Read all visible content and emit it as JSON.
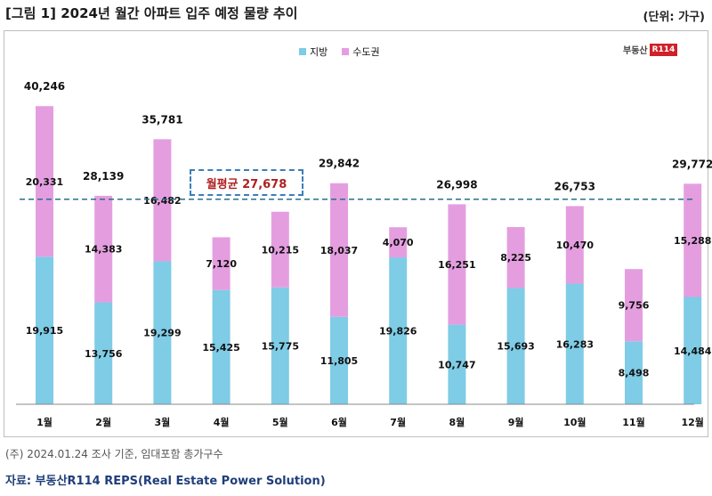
{
  "title": "[그림 1] 2024년 월간 아파트 입주 예정 물량 추이",
  "unit_label": "(단위: 가구)",
  "logo": {
    "text": "부동산",
    "badge": "R114"
  },
  "footnote": "(주) 2024.01.24 조사 기준, 임대포함 총가구수",
  "source": "자료: 부동산R114 REPS(Real Estate Power Solution)",
  "colors": {
    "region": "#7ecce6",
    "capital": "#e49ee0",
    "avg_line": "#2a6f8a"
  },
  "chart_data": {
    "type": "bar",
    "stacked": true,
    "categories": [
      "1월",
      "2월",
      "3월",
      "4월",
      "5월",
      "6월",
      "7월",
      "8월",
      "9월",
      "10월",
      "11월",
      "12월"
    ],
    "series": [
      {
        "name": "지방",
        "values": [
          19915,
          13756,
          19299,
          15425,
          15775,
          11805,
          19826,
          10747,
          15693,
          16283,
          8498,
          14484
        ],
        "labels": [
          "19,915",
          "13,756",
          "19,299",
          "15,425",
          "15,775",
          "11,805",
          "19,826",
          "10,747",
          "15,693",
          "16,283",
          "8,498",
          "14,484"
        ]
      },
      {
        "name": "수도권",
        "values": [
          20331,
          14383,
          16482,
          7120,
          10215,
          18037,
          4070,
          16251,
          8225,
          10470,
          9756,
          15288
        ],
        "labels": [
          "20,331",
          "14,383",
          "16,482",
          "7,120",
          "10,215",
          "18,037",
          "4,070",
          "16,251",
          "8,225",
          "10,470",
          "9,756",
          "15,288"
        ]
      }
    ],
    "totals": {
      "0": "40,246",
      "1": "28,139",
      "2": "35,781",
      "5": "29,842",
      "7": "26,998",
      "9": "26,753",
      "11": "29,772"
    },
    "average": {
      "value": 27678,
      "label": "월평균 27,678"
    },
    "ylim": [
      0,
      47000
    ],
    "legend_position": "top-center"
  }
}
